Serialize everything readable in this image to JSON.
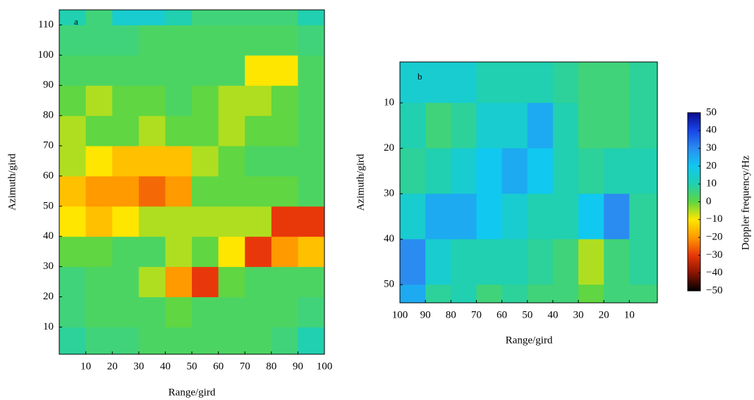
{
  "chart_data": [
    {
      "type": "heatmap",
      "panel_label": "a",
      "xlabel": "Range/gird",
      "ylabel": "Azimuth/gird",
      "xlim": [
        0,
        100
      ],
      "ylim": [
        1,
        115
      ],
      "xticks": [
        10,
        20,
        30,
        40,
        50,
        60,
        70,
        80,
        90,
        100
      ],
      "yticks": [
        10,
        20,
        30,
        40,
        50,
        60,
        70,
        80,
        90,
        100,
        110
      ],
      "x_edges": [
        0,
        10,
        20,
        30,
        40,
        50,
        60,
        70,
        80,
        90,
        100
      ],
      "y_edges": [
        1,
        10,
        20,
        30,
        40,
        50,
        60,
        70,
        80,
        90,
        100,
        110,
        115
      ],
      "z": [
        [
          8,
          5,
          5,
          3,
          3,
          3,
          3,
          3,
          5,
          10
        ],
        [
          5,
          3,
          3,
          3,
          0,
          3,
          3,
          3,
          3,
          5
        ],
        [
          5,
          3,
          3,
          -5,
          -20,
          -30,
          0,
          3,
          3,
          3
        ],
        [
          0,
          0,
          3,
          3,
          -5,
          0,
          -10,
          -30,
          -20,
          -15
        ],
        [
          -10,
          -15,
          -10,
          -5,
          -5,
          -5,
          -5,
          -5,
          -30,
          -30
        ],
        [
          -15,
          -20,
          -20,
          -25,
          -20,
          0,
          0,
          0,
          0,
          3
        ],
        [
          -5,
          -10,
          -15,
          -15,
          -15,
          -5,
          0,
          3,
          3,
          3
        ],
        [
          -5,
          0,
          0,
          -5,
          0,
          0,
          -5,
          0,
          0,
          3
        ],
        [
          0,
          -5,
          0,
          0,
          3,
          0,
          -5,
          -5,
          0,
          3
        ],
        [
          3,
          3,
          3,
          3,
          3,
          3,
          3,
          -10,
          -10,
          3
        ],
        [
          5,
          5,
          5,
          3,
          3,
          3,
          3,
          3,
          3,
          5
        ],
        [
          10,
          5,
          15,
          15,
          10,
          5,
          5,
          5,
          5,
          10
        ]
      ]
    },
    {
      "type": "heatmap",
      "panel_label": "b",
      "xlabel": "Range/gird",
      "ylabel": "Azimuth/gird",
      "xlim": [
        100,
        -1
      ],
      "ylim": [
        54,
        1
      ],
      "xticks": [
        100,
        90,
        80,
        70,
        60,
        50,
        40,
        30,
        20,
        10
      ],
      "yticks": [
        10,
        20,
        30,
        40,
        50
      ],
      "x_edges": [
        100,
        90,
        80,
        70,
        60,
        50,
        40,
        30,
        20,
        10,
        -1
      ],
      "y_edges": [
        1,
        10,
        20,
        30,
        40,
        50,
        54
      ],
      "z": [
        [
          15,
          15,
          15,
          10,
          10,
          10,
          8,
          5,
          5,
          8
        ],
        [
          10,
          5,
          8,
          15,
          15,
          25,
          10,
          5,
          5,
          8
        ],
        [
          8,
          10,
          15,
          20,
          25,
          20,
          10,
          8,
          10,
          10
        ],
        [
          15,
          25,
          25,
          20,
          15,
          10,
          10,
          20,
          30,
          8
        ],
        [
          30,
          15,
          10,
          10,
          10,
          8,
          5,
          -5,
          5,
          8
        ],
        [
          25,
          8,
          10,
          5,
          8,
          5,
          5,
          0,
          5,
          5
        ]
      ],
      "colorbar": {
        "label": "Doppler frequency/Hz",
        "lim": [
          -50,
          50
        ],
        "ticks": [
          50,
          40,
          30,
          20,
          10,
          0,
          {
            "value": -10,
            "label": "−10"
          },
          {
            "value": -20,
            "label": "−20"
          },
          {
            "value": -30,
            "label": "−30"
          },
          {
            "value": -40,
            "label": "−40"
          },
          {
            "value": -50,
            "label": "−50"
          }
        ],
        "colormap": [
          "#000000",
          "#8a1400",
          "#e8380a",
          "#ff9a00",
          "#ffe600",
          "#5fd642",
          "#20d0b0",
          "#10c8f0",
          "#2a8cf0",
          "#1846e8",
          "#0a0a90"
        ]
      }
    }
  ]
}
